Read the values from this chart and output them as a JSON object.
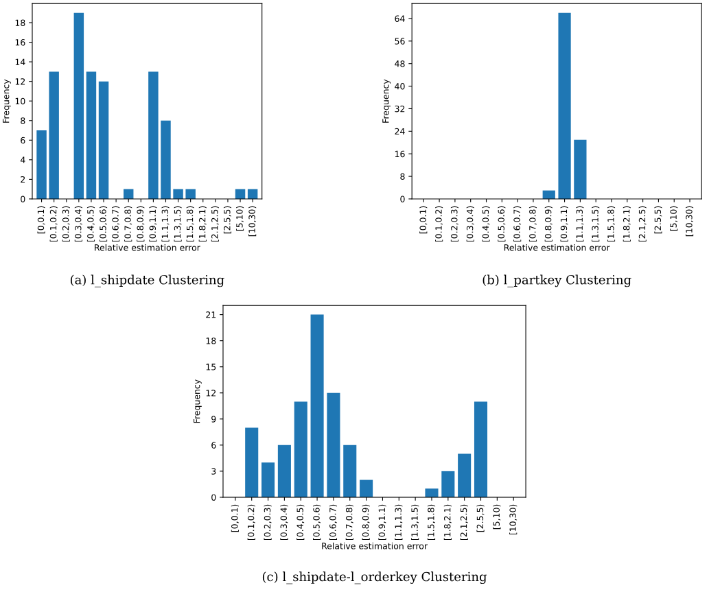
{
  "chart_data": [
    {
      "type": "bar",
      "title": "(a) l_shipdate Clustering",
      "xlabel": "Relative estimation error",
      "ylabel": "Frequency",
      "color": "#1f77b4",
      "ylim": [
        0,
        19.95
      ],
      "yticks": [
        0,
        2,
        4,
        6,
        8,
        10,
        12,
        14,
        16,
        18
      ],
      "categories": [
        "[0,0.1)",
        "[0.1,0.2)",
        "[0.2,0.3)",
        "[0.3,0.4)",
        "[0.4,0.5)",
        "[0.5,0.6)",
        "[0.6,0.7)",
        "[0.7,0.8)",
        "[0.8,0.9)",
        "[0.9,1.1)",
        "[1.1,1.3)",
        "[1.3,1.5)",
        "[1.5,1.8)",
        "[1.8,2.1)",
        "[2.1,2.5)",
        "[2.5,5)",
        "[5,10)",
        "[10,30)"
      ],
      "values": [
        7,
        13,
        0,
        19,
        13,
        12,
        0,
        1,
        0,
        13,
        8,
        1,
        1,
        0,
        0,
        0,
        1,
        1
      ]
    },
    {
      "type": "bar",
      "title": "(b) l_partkey Clustering",
      "xlabel": "Relative estimation error",
      "ylabel": "Frequency",
      "color": "#1f77b4",
      "ylim": [
        0,
        69.3
      ],
      "yticks": [
        0,
        8,
        16,
        24,
        32,
        40,
        48,
        56,
        64
      ],
      "categories": [
        "[0,0.1)",
        "[0.1,0.2)",
        "[0.2,0.3)",
        "[0.3,0.4)",
        "[0.4,0.5)",
        "[0.5,0.6)",
        "[0.6,0.7)",
        "[0.7,0.8)",
        "[0.8,0.9)",
        "[0.9,1.1)",
        "[1.1,1.3)",
        "[1.3,1.5)",
        "[1.5,1.8)",
        "[1.8,2.1)",
        "[2.1,2.5)",
        "[2.5,5)",
        "[5,10)",
        "[10,30)"
      ],
      "values": [
        0,
        0,
        0,
        0,
        0,
        0,
        0,
        0,
        3,
        66,
        21,
        0,
        0,
        0,
        0,
        0,
        0,
        0
      ]
    },
    {
      "type": "bar",
      "title": "(c) l_shipdate-l_orderkey Clustering",
      "xlabel": "Relative estimation error",
      "ylabel": "Frequency",
      "color": "#1f77b4",
      "ylim": [
        0,
        22.05
      ],
      "yticks": [
        0,
        3,
        6,
        9,
        12,
        15,
        18,
        21
      ],
      "categories": [
        "[0,0.1)",
        "[0.1,0.2)",
        "[0.2,0.3)",
        "[0.3,0.4)",
        "[0.4,0.5)",
        "[0.5,0.6)",
        "[0.6,0.7)",
        "[0.7,0.8)",
        "[0.8,0.9)",
        "[0.9,1.1)",
        "[1.1,1.3)",
        "[1.3,1.5)",
        "[1.5,1.8)",
        "[1.8,2.1)",
        "[2.1,2.5)",
        "[2.5,5)",
        "[5,10)",
        "[10,30)"
      ],
      "values": [
        0,
        8,
        4,
        6,
        11,
        21,
        12,
        6,
        2,
        0,
        0,
        0,
        1,
        3,
        5,
        11,
        0,
        0
      ]
    }
  ]
}
